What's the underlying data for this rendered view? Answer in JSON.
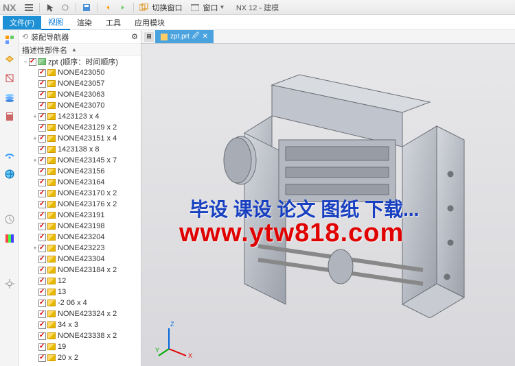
{
  "app": {
    "logo": "NX",
    "title": "NX 12 - 建模",
    "switch_window": "切换窗口",
    "window_menu": "窗口"
  },
  "menu": {
    "file": "文件(F)",
    "view": "视图",
    "render": "渲染",
    "tools": "工具",
    "app": "应用模块"
  },
  "nav": {
    "title": "装配导航器",
    "column": "描述性部件名"
  },
  "tab": {
    "filename": "zpt.prt"
  },
  "tree": {
    "root": "zpt (顺序：时间顺序)",
    "items": [
      {
        "l": "NONE423050",
        "i": 1
      },
      {
        "l": "NONE423057",
        "i": 1
      },
      {
        "l": "NONE423063",
        "i": 1
      },
      {
        "l": "NONE423070",
        "i": 1
      },
      {
        "l": "1423123 x 4",
        "i": 1,
        "e": "+"
      },
      {
        "l": "NONE423129 x 2",
        "i": 1
      },
      {
        "l": "NONE423151 x 4",
        "i": 1,
        "e": "+"
      },
      {
        "l": "1423138 x 8",
        "i": 1
      },
      {
        "l": "NONE423145 x 7",
        "i": 1,
        "e": "+"
      },
      {
        "l": "NONE423156",
        "i": 1
      },
      {
        "l": "NONE423164",
        "i": 1
      },
      {
        "l": "NONE423170 x 2",
        "i": 1
      },
      {
        "l": "NONE423176 x 2",
        "i": 1
      },
      {
        "l": "NONE423191",
        "i": 1
      },
      {
        "l": "NONE423198",
        "i": 1
      },
      {
        "l": "NONE423204",
        "i": 1
      },
      {
        "l": "NONE423223",
        "i": 1,
        "e": "+"
      },
      {
        "l": "NONE423304",
        "i": 1
      },
      {
        "l": "NONE423184 x 2",
        "i": 1
      },
      {
        "l": "12",
        "i": 1
      },
      {
        "l": "13",
        "i": 1
      },
      {
        "l": "-2 06 x 4",
        "i": 1
      },
      {
        "l": "NONE423324 x 2",
        "i": 1
      },
      {
        "l": "34 x 3",
        "i": 1
      },
      {
        "l": "NONE423338 x 2",
        "i": 1
      },
      {
        "l": "19",
        "i": 1
      },
      {
        "l": "20 x 2",
        "i": 1
      }
    ]
  },
  "watermark": {
    "line1": "毕设 课设 论文 图纸 下载...",
    "line2": "www.ytw818.com"
  },
  "triad": {
    "x": "X",
    "y": "Y",
    "z": "Z"
  },
  "colors": {
    "accent": "#1e90d6",
    "check": "#d00000",
    "wm1": "#1840c0",
    "wm2": "#e00000",
    "model": "#b8bcc4"
  }
}
